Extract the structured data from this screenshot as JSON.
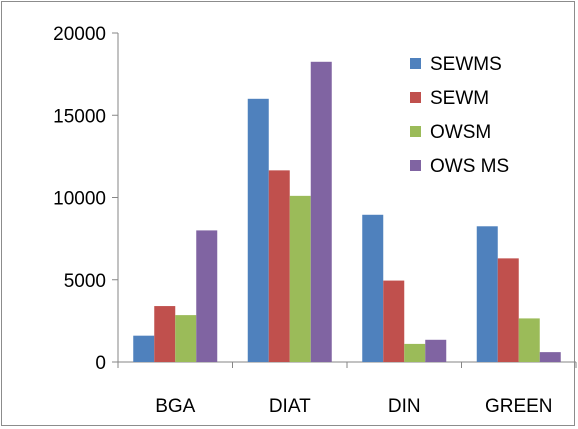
{
  "chart_data": {
    "type": "bar",
    "categories": [
      "BGA",
      "DIAT",
      "DIN",
      "GREEN"
    ],
    "series": [
      {
        "name": "SEWMS",
        "color": "#4f81bd",
        "values": [
          1600,
          16000,
          8950,
          8250
        ]
      },
      {
        "name": "SEWM",
        "color": "#c0504d",
        "values": [
          3400,
          11650,
          4950,
          6300
        ]
      },
      {
        "name": "OWSM",
        "color": "#9bbb59",
        "values": [
          2850,
          10100,
          1100,
          2650
        ]
      },
      {
        "name": "OWS MS",
        "color": "#8064a2",
        "values": [
          8000,
          18250,
          1350,
          600
        ]
      }
    ],
    "ylim": [
      0,
      20000
    ],
    "yticks": [
      "0",
      "5000",
      "10000",
      "15000",
      "20000"
    ],
    "grid": false,
    "legend": "top-right",
    "title": "",
    "xlabel": "",
    "ylabel": ""
  }
}
